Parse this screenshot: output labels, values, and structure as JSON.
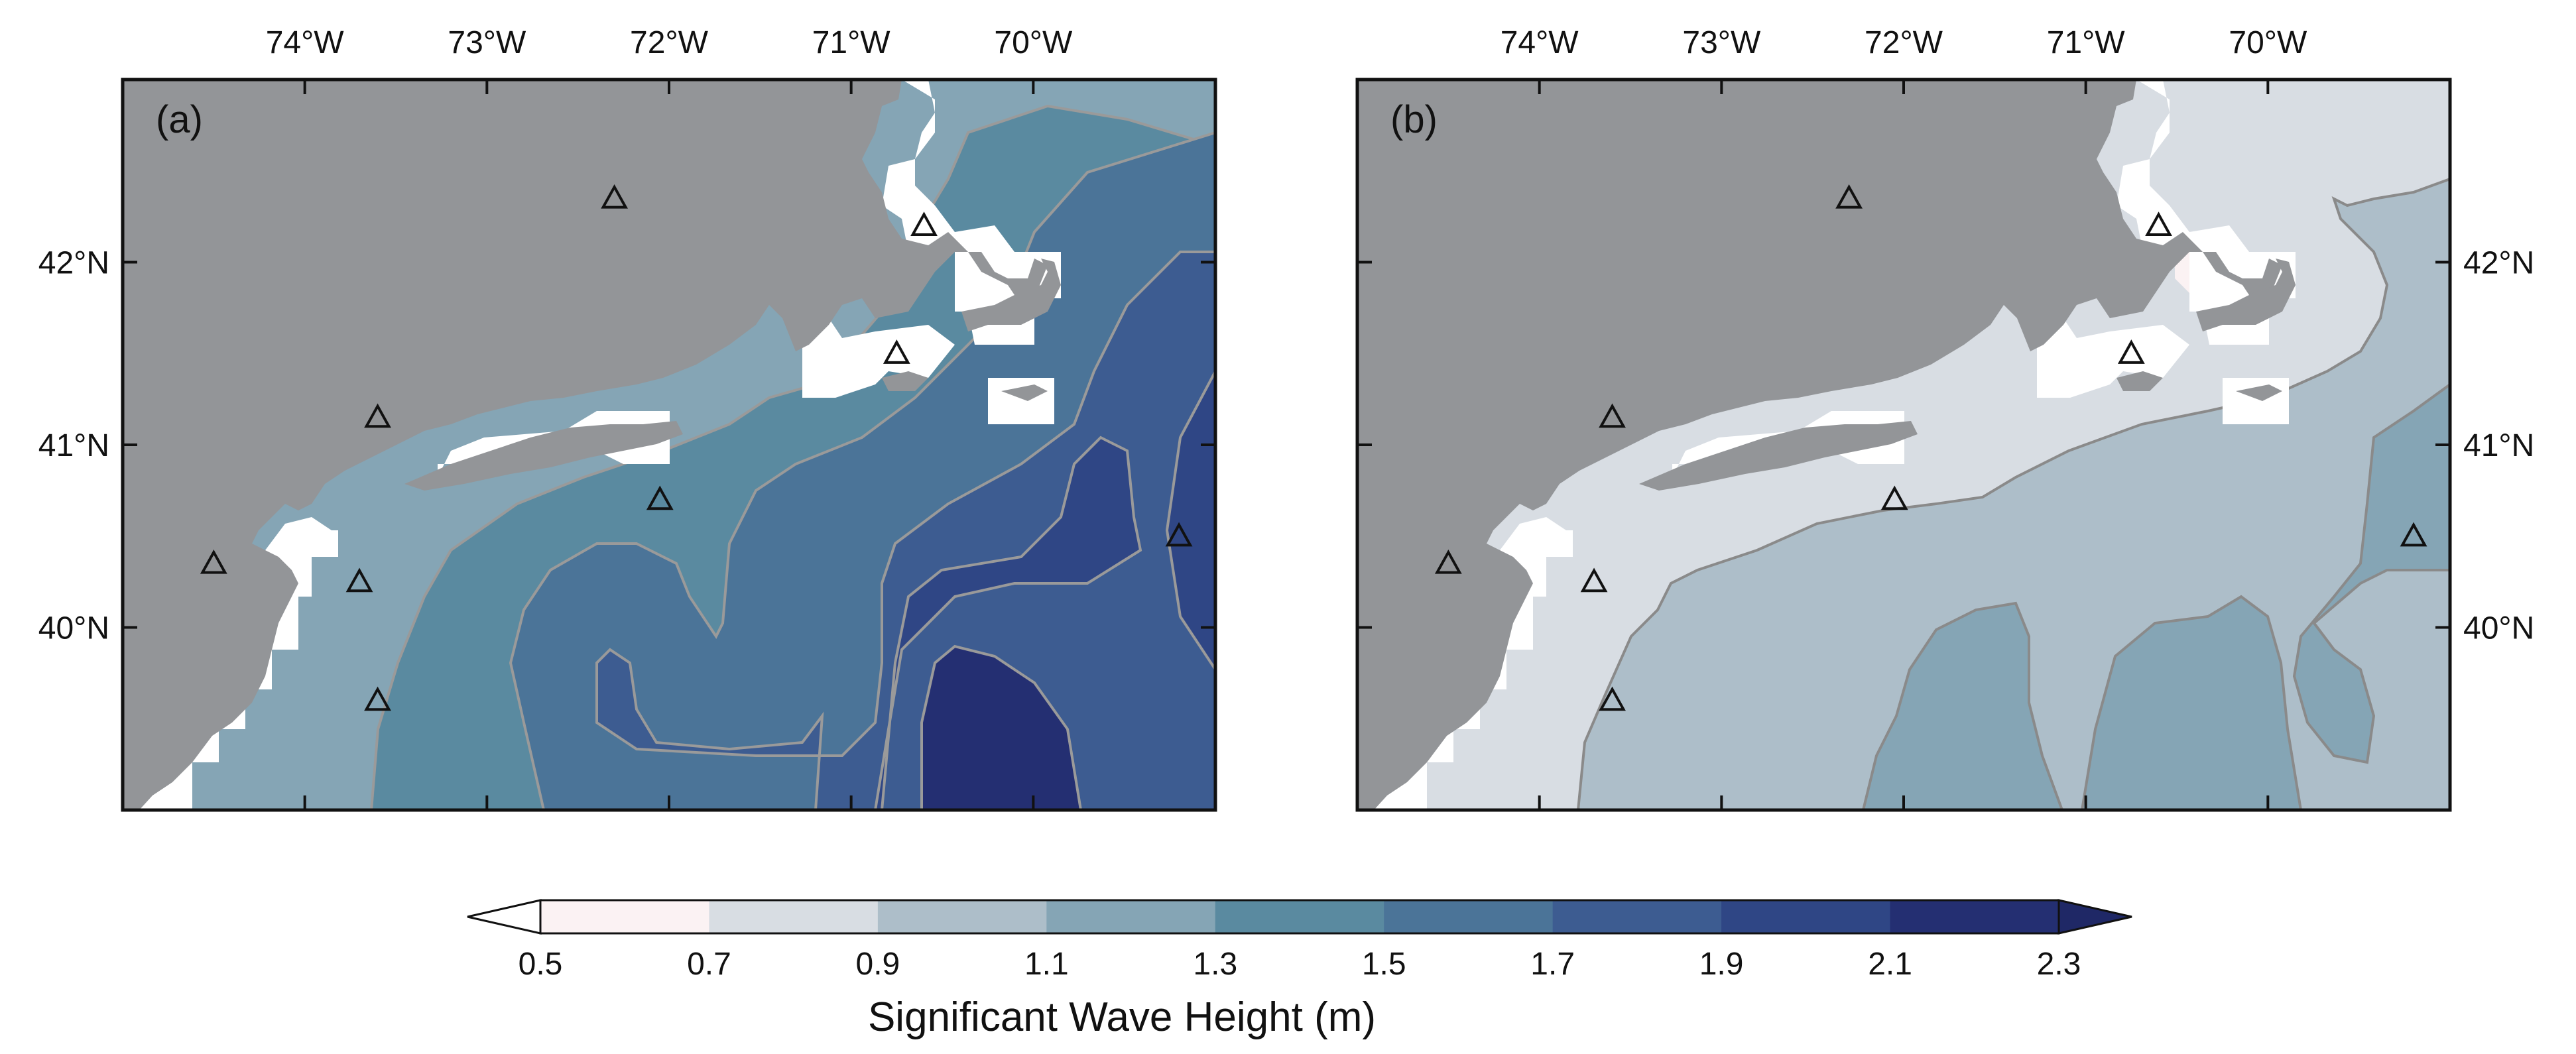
{
  "panels": [
    {
      "id": "a",
      "label": "(a)",
      "lon_ticks": [
        "74°W",
        "73°W",
        "72°W",
        "71°W",
        "70°W"
      ],
      "lat_ticks": [
        "42°N",
        "41°N",
        "40°N"
      ],
      "lat_tick_side": "left",
      "stations": [
        {
          "lon": -72.3,
          "lat": 42.35
        },
        {
          "lon": -70.6,
          "lat": 42.2
        },
        {
          "lon": -70.75,
          "lat": 41.5
        },
        {
          "lon": -73.6,
          "lat": 41.15
        },
        {
          "lon": -72.05,
          "lat": 40.7
        },
        {
          "lon": -74.5,
          "lat": 40.35
        },
        {
          "lon": -73.7,
          "lat": 40.25
        },
        {
          "lon": -73.6,
          "lat": 39.6
        },
        {
          "lon": -69.2,
          "lat": 40.5
        }
      ]
    },
    {
      "id": "b",
      "label": "(b)",
      "lon_ticks": [
        "74°W",
        "73°W",
        "72°W",
        "71°W",
        "70°W"
      ],
      "lat_ticks": [
        "42°N",
        "41°N",
        "40°N"
      ],
      "lat_tick_side": "right",
      "stations": [
        {
          "lon": -72.3,
          "lat": 42.35
        },
        {
          "lon": -70.6,
          "lat": 42.2
        },
        {
          "lon": -70.75,
          "lat": 41.5
        },
        {
          "lon": -73.6,
          "lat": 41.15
        },
        {
          "lon": -72.05,
          "lat": 40.7
        },
        {
          "lon": -74.5,
          "lat": 40.35
        },
        {
          "lon": -73.7,
          "lat": 40.25
        },
        {
          "lon": -73.6,
          "lat": 39.6
        },
        {
          "lon": -69.2,
          "lat": 40.5
        }
      ]
    }
  ],
  "colorbar": {
    "title": "Significant Wave Height (m)",
    "tick_labels": [
      "0.5",
      "0.7",
      "0.9",
      "1.1",
      "1.3",
      "1.5",
      "1.7",
      "1.9",
      "2.1",
      "2.3"
    ],
    "levels": [
      0.5,
      0.7,
      0.9,
      1.1,
      1.3,
      1.5,
      1.7,
      1.9,
      2.1,
      2.3
    ],
    "bin_colors": [
      "#fbf2f3",
      "#d8dde3",
      "#adbec9",
      "#85a5b5",
      "#5a8aa0",
      "#4b7498",
      "#3d5c91",
      "#2f4685",
      "#242f72"
    ],
    "under_color": "#ffffff",
    "over_color": "#1f2866",
    "extend": "both"
  },
  "colors": {
    "land": "#939598",
    "coast_mask": "#ffffff",
    "contour_line": "#9a9a9a",
    "frame": "#111111"
  }
}
